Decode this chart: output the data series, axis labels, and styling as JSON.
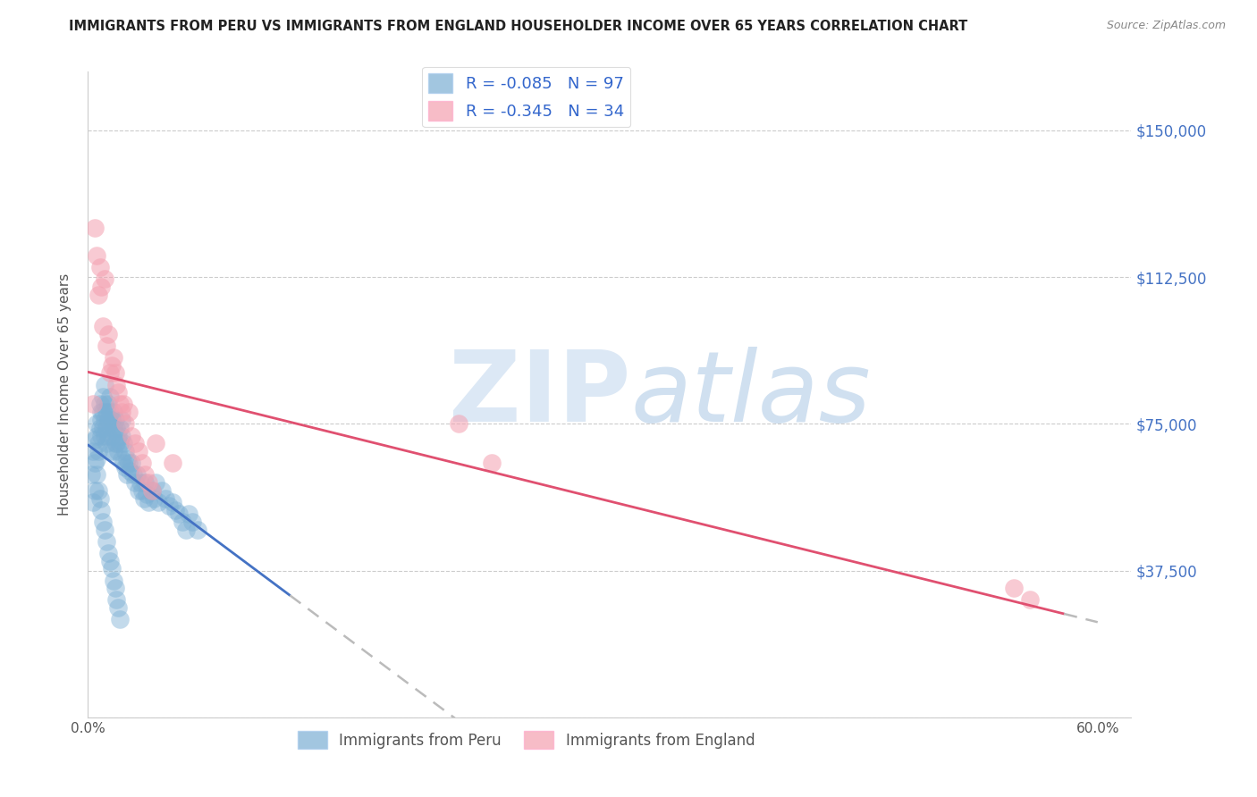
{
  "title": "IMMIGRANTS FROM PERU VS IMMIGRANTS FROM ENGLAND HOUSEHOLDER INCOME OVER 65 YEARS CORRELATION CHART",
  "source": "Source: ZipAtlas.com",
  "ylabel": "Householder Income Over 65 years",
  "yticks": [
    0,
    37500,
    75000,
    112500,
    150000
  ],
  "xlim": [
    0.0,
    0.62
  ],
  "ylim": [
    0,
    165000
  ],
  "peru_R": -0.085,
  "peru_N": 97,
  "england_R": -0.345,
  "england_N": 34,
  "peru_color": "#7BAFD4",
  "england_color": "#F4A0B0",
  "peru_trend_color": "#4472C4",
  "england_trend_color": "#E05070",
  "dashed_color": "#BBBBBB",
  "background_color": "#FFFFFF",
  "grid_color": "#CCCCCC",
  "peru_x": [
    0.002,
    0.003,
    0.004,
    0.004,
    0.005,
    0.005,
    0.005,
    0.006,
    0.006,
    0.007,
    0.007,
    0.008,
    0.008,
    0.008,
    0.009,
    0.009,
    0.009,
    0.01,
    0.01,
    0.01,
    0.01,
    0.011,
    0.011,
    0.011,
    0.012,
    0.012,
    0.012,
    0.013,
    0.013,
    0.013,
    0.014,
    0.014,
    0.015,
    0.015,
    0.015,
    0.016,
    0.016,
    0.017,
    0.017,
    0.018,
    0.018,
    0.019,
    0.019,
    0.02,
    0.02,
    0.02,
    0.021,
    0.021,
    0.022,
    0.022,
    0.023,
    0.023,
    0.024,
    0.025,
    0.026,
    0.027,
    0.028,
    0.029,
    0.03,
    0.031,
    0.032,
    0.033,
    0.034,
    0.035,
    0.036,
    0.038,
    0.039,
    0.04,
    0.042,
    0.044,
    0.046,
    0.048,
    0.05,
    0.052,
    0.054,
    0.056,
    0.058,
    0.06,
    0.062,
    0.065,
    0.003,
    0.004,
    0.005,
    0.006,
    0.007,
    0.008,
    0.009,
    0.01,
    0.011,
    0.012,
    0.013,
    0.014,
    0.015,
    0.016,
    0.017,
    0.018,
    0.019
  ],
  "peru_y": [
    62000,
    68000,
    71000,
    65000,
    75000,
    72000,
    66000,
    70000,
    68000,
    80000,
    74000,
    78000,
    76000,
    72000,
    82000,
    78000,
    74000,
    85000,
    80000,
    76000,
    72000,
    78000,
    74000,
    70000,
    80000,
    76000,
    72000,
    82000,
    78000,
    68000,
    76000,
    72000,
    78000,
    74000,
    68000,
    76000,
    70000,
    74000,
    70000,
    72000,
    68000,
    74000,
    70000,
    76000,
    72000,
    66000,
    70000,
    65000,
    68000,
    64000,
    66000,
    62000,
    65000,
    63000,
    65000,
    62000,
    60000,
    62000,
    58000,
    60000,
    58000,
    56000,
    60000,
    57000,
    55000,
    58000,
    56000,
    60000,
    55000,
    58000,
    56000,
    54000,
    55000,
    53000,
    52000,
    50000,
    48000,
    52000,
    50000,
    48000,
    55000,
    58000,
    62000,
    58000,
    56000,
    53000,
    50000,
    48000,
    45000,
    42000,
    40000,
    38000,
    35000,
    33000,
    30000,
    28000,
    25000
  ],
  "england_x": [
    0.003,
    0.004,
    0.005,
    0.006,
    0.007,
    0.008,
    0.009,
    0.01,
    0.011,
    0.012,
    0.013,
    0.014,
    0.015,
    0.016,
    0.017,
    0.018,
    0.019,
    0.02,
    0.021,
    0.022,
    0.024,
    0.026,
    0.028,
    0.03,
    0.032,
    0.034,
    0.036,
    0.038,
    0.04,
    0.05,
    0.22,
    0.24,
    0.55,
    0.56
  ],
  "england_y": [
    80000,
    125000,
    118000,
    108000,
    115000,
    110000,
    100000,
    112000,
    95000,
    98000,
    88000,
    90000,
    92000,
    88000,
    85000,
    83000,
    80000,
    78000,
    80000,
    75000,
    78000,
    72000,
    70000,
    68000,
    65000,
    62000,
    60000,
    58000,
    70000,
    65000,
    75000,
    65000,
    33000,
    30000
  ],
  "peru_trend_x_solid_end": 0.12,
  "england_trend_x_solid_end": 0.58,
  "peru_trend_intercept": 73000,
  "peru_trend_slope": -80000,
  "england_trend_intercept": 85000,
  "england_trend_slope": -95000
}
